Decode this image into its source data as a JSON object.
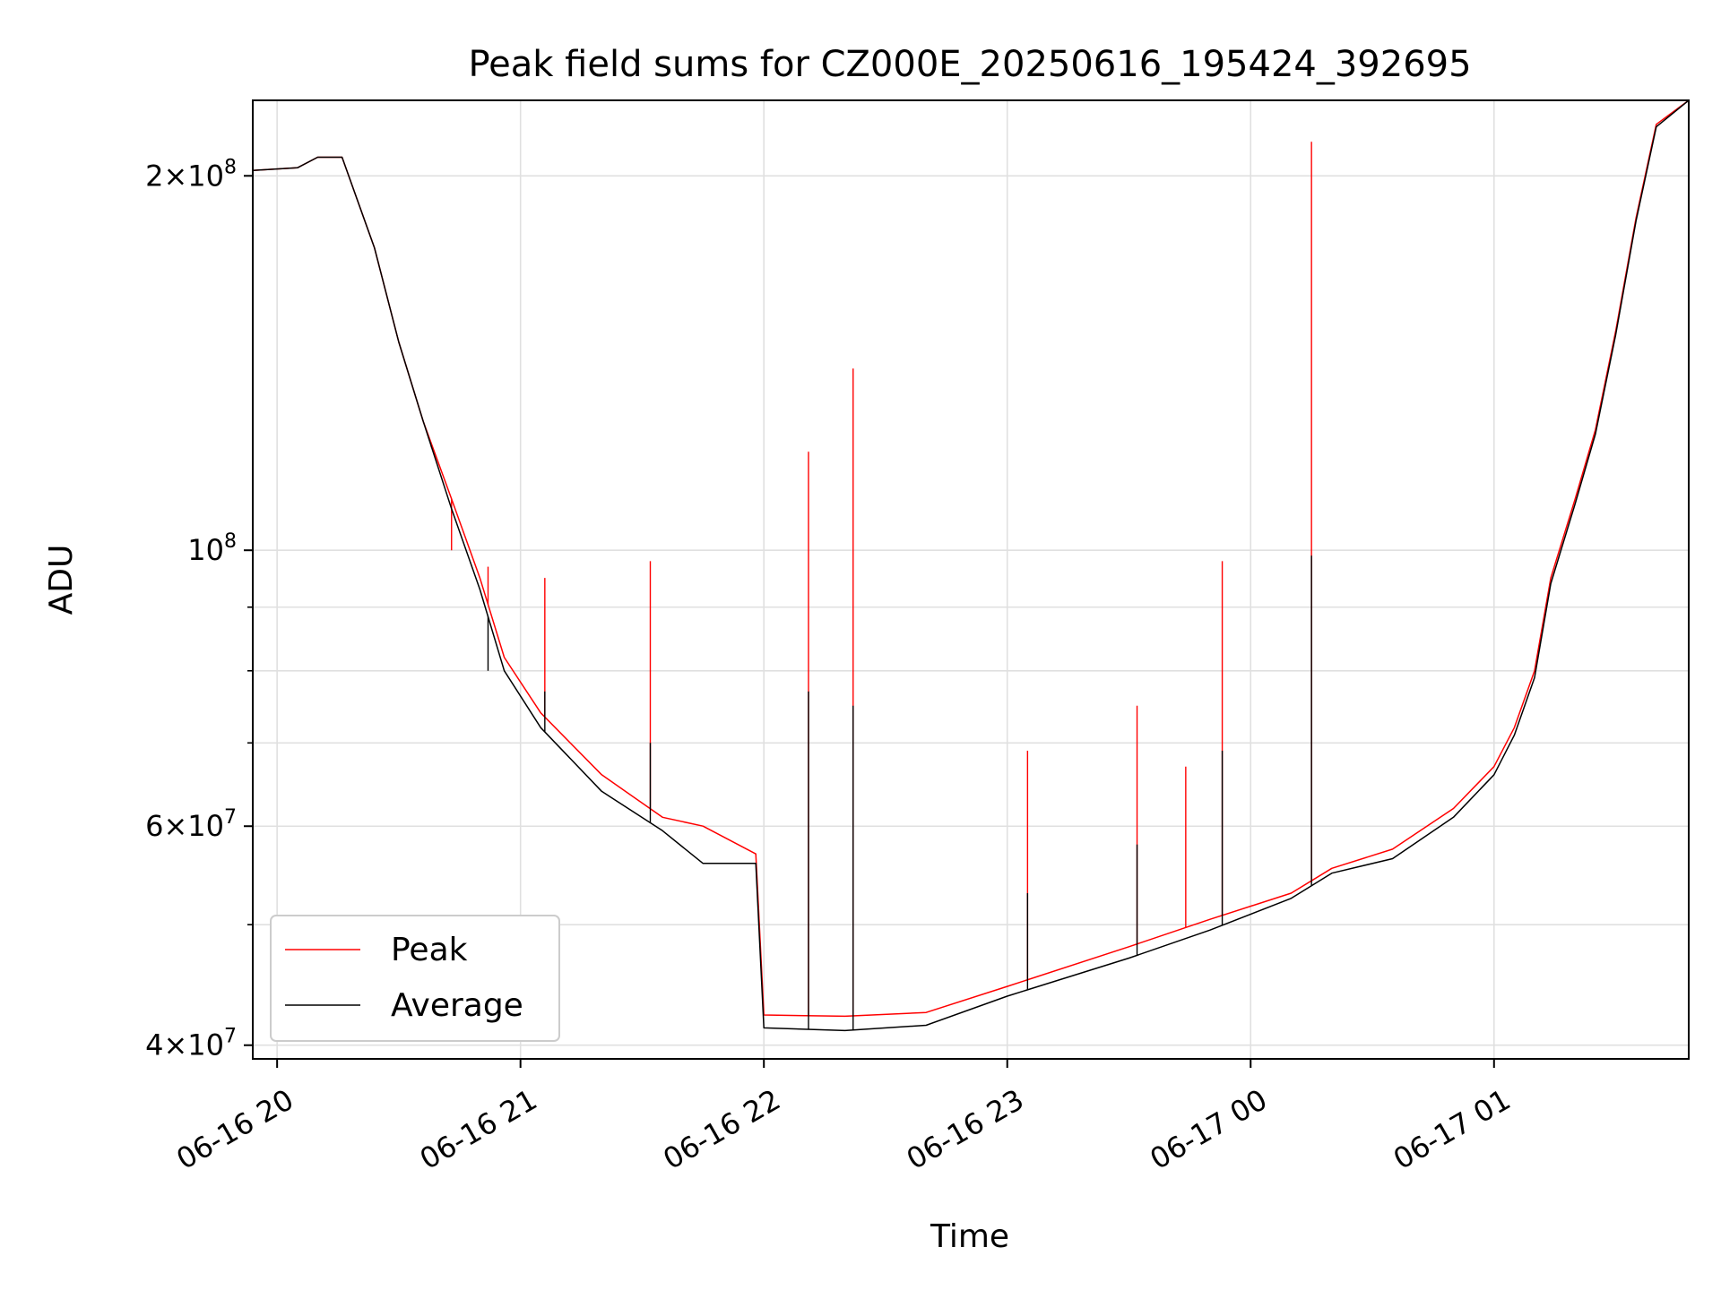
{
  "chart_data": {
    "type": "line",
    "title": "Peak field sums for CZ000E_20250616_195424_392695",
    "xlabel": "Time",
    "ylabel": "ADU",
    "x_axis": {
      "kind": "datetime",
      "start": "2025-06-16T19:54",
      "end": "2025-06-17T01:48",
      "tick_times": [
        "2025-06-16T20:00",
        "2025-06-16T21:00",
        "2025-06-16T22:00",
        "2025-06-16T23:00",
        "2025-06-17T00:00",
        "2025-06-17T01:00"
      ],
      "tick_labels": [
        "06-16 20",
        "06-16 21",
        "06-16 22",
        "06-16 23",
        "06-17 00",
        "06-17 01"
      ]
    },
    "y_axis": {
      "scale": "log",
      "ylim": [
        39000000,
        230000000
      ],
      "major_ticks": [
        40000000,
        60000000,
        100000000,
        200000000
      ],
      "major_tick_labels": [
        {
          "base": "4×10",
          "exp": "7"
        },
        {
          "base": "6×10",
          "exp": "7"
        },
        {
          "base": "10",
          "exp": "8"
        },
        {
          "base": "2×10",
          "exp": "8"
        }
      ],
      "minor_ticks": [
        50000000,
        70000000,
        80000000,
        90000000
      ]
    },
    "grid": true,
    "legend_position": "lower-left",
    "series": [
      {
        "name": "Peak",
        "color": "#ff0000",
        "points": [
          [
            "2025-06-16T19:54",
            202000000
          ],
          [
            "2025-06-16T20:05",
            203000000
          ],
          [
            "2025-06-16T20:10",
            207000000
          ],
          [
            "2025-06-16T20:16",
            207000000
          ],
          [
            "2025-06-16T20:24",
            175000000
          ],
          [
            "2025-06-16T20:30",
            147000000
          ],
          [
            "2025-06-16T20:36",
            127000000
          ],
          [
            "2025-06-16T20:43",
            110000000
          ],
          [
            "2025-06-16T20:50",
            95000000
          ],
          [
            "2025-06-16T20:56",
            82000000
          ],
          [
            "2025-06-16T21:05",
            74000000
          ],
          [
            "2025-06-16T21:20",
            66000000
          ],
          [
            "2025-06-16T21:35",
            61000000
          ],
          [
            "2025-06-16T21:45",
            60000000
          ],
          [
            "2025-06-16T21:58",
            57000000
          ],
          [
            "2025-06-16T22:00",
            42300000
          ],
          [
            "2025-06-16T22:20",
            42200000
          ],
          [
            "2025-06-16T22:40",
            42500000
          ],
          [
            "2025-06-16T23:00",
            44600000
          ],
          [
            "2025-06-16T23:30",
            48000000
          ],
          [
            "2025-06-16T23:50",
            50500000
          ],
          [
            "2025-06-17T00:10",
            53000000
          ],
          [
            "2025-06-17T00:20",
            55500000
          ],
          [
            "2025-06-17T00:35",
            57500000
          ],
          [
            "2025-06-17T00:50",
            62000000
          ],
          [
            "2025-06-17T01:00",
            67000000
          ],
          [
            "2025-06-17T01:05",
            72000000
          ],
          [
            "2025-06-17T01:10",
            80000000
          ],
          [
            "2025-06-17T01:14",
            95000000
          ],
          [
            "2025-06-17T01:20",
            110000000
          ],
          [
            "2025-06-17T01:25",
            125000000
          ],
          [
            "2025-06-17T01:30",
            150000000
          ],
          [
            "2025-06-17T01:35",
            185000000
          ],
          [
            "2025-06-17T01:40",
            220000000
          ],
          [
            "2025-06-17T01:48",
            230000000
          ]
        ],
        "spikes": [
          [
            "2025-06-16T20:38",
            121000000
          ],
          [
            "2025-06-16T20:43",
            100000000
          ],
          [
            "2025-06-16T20:52",
            97000000
          ],
          [
            "2025-06-16T21:06",
            95000000
          ],
          [
            "2025-06-16T21:32",
            98000000
          ],
          [
            "2025-06-16T22:11",
            120000000
          ],
          [
            "2025-06-16T22:22",
            140000000
          ],
          [
            "2025-06-16T23:05",
            69000000
          ],
          [
            "2025-06-16T23:32",
            75000000
          ],
          [
            "2025-06-16T23:44",
            67000000
          ],
          [
            "2025-06-16T23:53",
            98000000
          ],
          [
            "2025-06-17T00:15",
            213000000
          ]
        ]
      },
      {
        "name": "Average",
        "color": "#000000",
        "points": [
          [
            "2025-06-16T19:54",
            202000000
          ],
          [
            "2025-06-16T20:05",
            203000000
          ],
          [
            "2025-06-16T20:10",
            207000000
          ],
          [
            "2025-06-16T20:16",
            207000000
          ],
          [
            "2025-06-16T20:24",
            175000000
          ],
          [
            "2025-06-16T20:30",
            147000000
          ],
          [
            "2025-06-16T20:36",
            127000000
          ],
          [
            "2025-06-16T20:43",
            108000000
          ],
          [
            "2025-06-16T20:50",
            93000000
          ],
          [
            "2025-06-16T20:56",
            80000000
          ],
          [
            "2025-06-16T21:05",
            72000000
          ],
          [
            "2025-06-16T21:20",
            64000000
          ],
          [
            "2025-06-16T21:35",
            59500000
          ],
          [
            "2025-06-16T21:45",
            56000000
          ],
          [
            "2025-06-16T21:58",
            56000000
          ],
          [
            "2025-06-16T22:00",
            41300000
          ],
          [
            "2025-06-16T22:20",
            41100000
          ],
          [
            "2025-06-16T22:40",
            41500000
          ],
          [
            "2025-06-16T23:00",
            43800000
          ],
          [
            "2025-06-16T23:30",
            47000000
          ],
          [
            "2025-06-16T23:50",
            49500000
          ],
          [
            "2025-06-17T00:10",
            52500000
          ],
          [
            "2025-06-17T00:20",
            55000000
          ],
          [
            "2025-06-17T00:35",
            56500000
          ],
          [
            "2025-06-17T00:50",
            61000000
          ],
          [
            "2025-06-17T01:00",
            66000000
          ],
          [
            "2025-06-17T01:05",
            71000000
          ],
          [
            "2025-06-17T01:10",
            79000000
          ],
          [
            "2025-06-17T01:14",
            94000000
          ],
          [
            "2025-06-17T01:20",
            109000000
          ],
          [
            "2025-06-17T01:25",
            124000000
          ],
          [
            "2025-06-17T01:30",
            149000000
          ],
          [
            "2025-06-17T01:35",
            184000000
          ],
          [
            "2025-06-17T01:40",
            219000000
          ],
          [
            "2025-06-17T01:48",
            230000000
          ]
        ],
        "spikes": [
          [
            "2025-06-16T20:52",
            80000000
          ],
          [
            "2025-06-16T21:06",
            77000000
          ],
          [
            "2025-06-16T21:32",
            70000000
          ],
          [
            "2025-06-16T22:11",
            77000000
          ],
          [
            "2025-06-16T22:22",
            75000000
          ],
          [
            "2025-06-16T23:05",
            53000000
          ],
          [
            "2025-06-16T23:32",
            58000000
          ],
          [
            "2025-06-16T23:53",
            69000000
          ],
          [
            "2025-06-17T00:15",
            99000000
          ]
        ]
      }
    ]
  }
}
